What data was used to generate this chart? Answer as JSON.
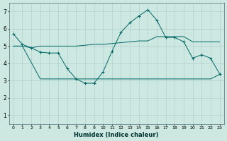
{
  "xlabel": "Humidex (Indice chaleur)",
  "xlim": [
    -0.5,
    23.5
  ],
  "ylim": [
    0.5,
    7.5
  ],
  "yticks": [
    1,
    2,
    3,
    4,
    5,
    6,
    7
  ],
  "xticks": [
    0,
    1,
    2,
    3,
    4,
    5,
    6,
    7,
    8,
    9,
    10,
    11,
    12,
    13,
    14,
    15,
    16,
    17,
    18,
    19,
    20,
    21,
    22,
    23
  ],
  "background_color": "#cce8e0",
  "grid_color": "#aacccc",
  "line_color": "#006666",
  "line1_x": [
    0,
    1,
    2,
    3,
    4,
    5,
    6,
    7,
    8,
    9,
    10,
    11,
    12,
    13,
    14,
    15,
    16,
    17,
    18,
    19,
    20,
    21,
    22,
    23
  ],
  "line1_y": [
    5.7,
    5.1,
    4.9,
    4.65,
    4.6,
    4.6,
    3.7,
    3.1,
    2.85,
    2.85,
    3.5,
    4.7,
    5.8,
    6.35,
    6.75,
    7.1,
    6.5,
    5.5,
    5.5,
    5.25,
    4.3,
    4.5,
    4.3,
    3.4
  ],
  "line2_x": [
    0,
    1,
    2,
    3,
    5,
    6,
    7,
    9,
    10,
    11,
    12,
    13,
    14,
    15,
    16,
    17,
    18,
    19,
    20,
    21,
    22,
    23
  ],
  "line2_y": [
    5.0,
    5.0,
    4.9,
    5.0,
    5.0,
    5.0,
    5.0,
    5.1,
    5.1,
    5.15,
    5.2,
    5.25,
    5.3,
    5.3,
    5.55,
    5.55,
    5.55,
    5.55,
    5.25,
    5.25,
    5.25,
    5.25
  ],
  "line3_x": [
    0,
    1,
    3,
    5,
    9,
    10,
    11,
    12,
    13,
    14,
    15,
    16,
    17,
    18,
    19,
    20,
    21,
    22,
    23
  ],
  "line3_y": [
    5.0,
    5.0,
    3.1,
    3.1,
    3.1,
    3.1,
    3.1,
    3.1,
    3.1,
    3.1,
    3.1,
    3.1,
    3.1,
    3.1,
    3.1,
    3.1,
    3.1,
    3.1,
    3.35
  ]
}
